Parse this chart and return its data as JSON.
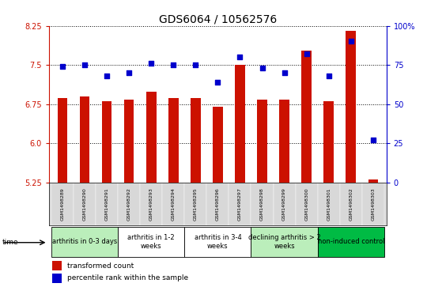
{
  "title": "GDS6064 / 10562576",
  "samples": [
    "GSM1498289",
    "GSM1498290",
    "GSM1498291",
    "GSM1498292",
    "GSM1498293",
    "GSM1498294",
    "GSM1498295",
    "GSM1498296",
    "GSM1498297",
    "GSM1498298",
    "GSM1498299",
    "GSM1498300",
    "GSM1498301",
    "GSM1498302",
    "GSM1498303"
  ],
  "bar_values": [
    6.87,
    6.89,
    6.8,
    6.83,
    6.99,
    6.87,
    6.87,
    6.7,
    7.5,
    6.84,
    6.84,
    7.78,
    6.8,
    8.15,
    5.3
  ],
  "dot_values": [
    74,
    75,
    68,
    70,
    76,
    75,
    75,
    64,
    80,
    73,
    70,
    82,
    68,
    90,
    27
  ],
  "bar_color": "#CC1100",
  "dot_color": "#0000CC",
  "ylim_left": [
    5.25,
    8.25
  ],
  "ylim_right": [
    0,
    100
  ],
  "yticks_left": [
    5.25,
    6.0,
    6.75,
    7.5,
    8.25
  ],
  "yticks_right": [
    0,
    25,
    50,
    75,
    100
  ],
  "groups": [
    {
      "label": "arthritis in 0-3 days",
      "start": 0,
      "end": 3,
      "color": "#bbeebb"
    },
    {
      "label": "arthritis in 1-2\nweeks",
      "start": 3,
      "end": 6,
      "color": "#ffffff"
    },
    {
      "label": "arthritis in 3-4\nweeks",
      "start": 6,
      "end": 9,
      "color": "#ffffff"
    },
    {
      "label": "declining arthritis > 2\nweeks",
      "start": 9,
      "end": 12,
      "color": "#bbeebb"
    },
    {
      "label": "non-induced control",
      "start": 12,
      "end": 15,
      "color": "#00bb44"
    }
  ],
  "legend_bar_label": "transformed count",
  "legend_dot_label": "percentile rank within the sample",
  "background_color": "#ffffff",
  "title_fontsize": 10,
  "tick_fontsize": 7,
  "sample_fontsize": 4.5,
  "group_fontsize": 6,
  "legend_fontsize": 6.5
}
